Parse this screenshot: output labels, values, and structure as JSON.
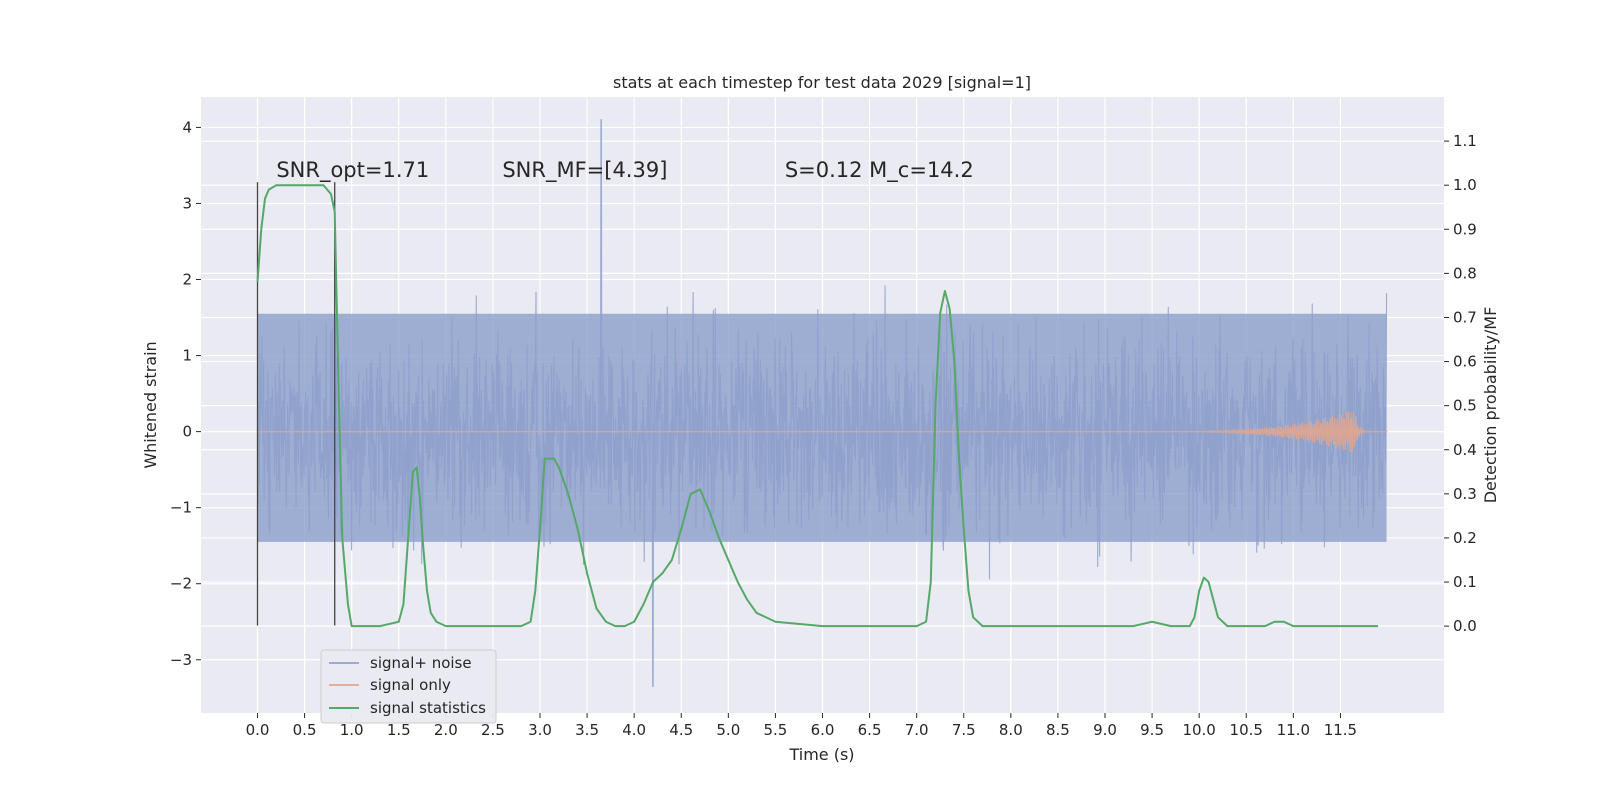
{
  "chart_data": {
    "type": "line",
    "title": "stats at each timestep for test data 2029 [signal=1]",
    "xlabel": "Time (s)",
    "ylabel": "Whitened strain",
    "ylabel_right": "Detection probability/MF",
    "xlim": [
      -0.6,
      12.6
    ],
    "ylim": [
      -3.7,
      4.4
    ],
    "ylim_right": [
      -0.197,
      1.2
    ],
    "x_ticks": [
      0.0,
      0.5,
      1.0,
      1.5,
      2.0,
      2.5,
      3.0,
      3.5,
      4.0,
      4.5,
      5.0,
      5.5,
      6.0,
      6.5,
      7.0,
      7.5,
      8.0,
      8.5,
      9.0,
      9.5,
      10.0,
      10.5,
      11.0,
      11.5
    ],
    "x_tick_labels": [
      "0.0",
      "0.5",
      "1.0",
      "1.5",
      "2.0",
      "2.5",
      "3.0",
      "3.5",
      "4.0",
      "4.5",
      "5.0",
      "5.5",
      "6.0",
      "6.5",
      "7.0",
      "7.5",
      "8.0",
      "8.5",
      "9.0",
      "9.5",
      "10.0",
      "10.5",
      "11.0",
      "11.5"
    ],
    "y_ticks": [
      -3,
      -2,
      -1,
      0,
      1,
      2,
      3,
      4
    ],
    "y_tick_labels": [
      "−3",
      "−2",
      "−1",
      "0",
      "1",
      "2",
      "3",
      "4"
    ],
    "y_ticks_right": [
      0.0,
      0.1,
      0.2,
      0.3,
      0.4,
      0.5,
      0.6,
      0.7,
      0.8,
      0.9,
      1.0,
      1.1
    ],
    "y_tick_labels_right": [
      "0.0",
      "0.1",
      "0.2",
      "0.3",
      "0.4",
      "0.5",
      "0.6",
      "0.7",
      "0.8",
      "0.9",
      "1.0",
      "1.1"
    ],
    "grid": true,
    "legend_position": "lower-left",
    "annotations": [
      {
        "text": "SNR_opt=1.71",
        "x": 0.2,
        "y": 3.35
      },
      {
        "text": "SNR_MF=[4.39]",
        "x": 2.6,
        "y": 3.35
      },
      {
        "text": "S=0.12   M_c=14.2",
        "x": 5.6,
        "y": 3.35
      }
    ],
    "window_markers": [
      0.0,
      0.82
    ],
    "series": [
      {
        "name": "signal+ noise",
        "axis": "left",
        "color": "#8da0cb",
        "t_start": 0.0,
        "t_end": 11.99,
        "band_lower": -1.45,
        "band_upper": 1.55,
        "typical_range": [
          -2.3,
          2.3
        ],
        "peak_max": 4.1,
        "peak_max_at": 3.65,
        "peak_min": -3.35,
        "peak_min_at": 4.2
      },
      {
        "name": "signal only",
        "axis": "left",
        "color": "#e1a58f",
        "t_start": 0.0,
        "t_end": 12.0,
        "peak_amplitude": 0.3,
        "peak_at": 11.65
      },
      {
        "name": "signal statistics",
        "axis": "right",
        "color": "#55a868",
        "x": [
          0.0,
          0.04,
          0.08,
          0.12,
          0.2,
          0.3,
          0.5,
          0.7,
          0.78,
          0.82,
          0.86,
          0.9,
          0.96,
          1.0,
          1.1,
          1.3,
          1.5,
          1.55,
          1.6,
          1.65,
          1.69,
          1.72,
          1.76,
          1.8,
          1.84,
          1.9,
          2.0,
          2.2,
          2.5,
          2.8,
          2.9,
          2.95,
          3.0,
          3.05,
          3.1,
          3.15,
          3.2,
          3.3,
          3.4,
          3.5,
          3.6,
          3.7,
          3.8,
          3.9,
          4.0,
          4.1,
          4.2,
          4.3,
          4.4,
          4.5,
          4.6,
          4.7,
          4.8,
          4.9,
          5.0,
          5.1,
          5.2,
          5.3,
          5.5,
          6.0,
          6.5,
          7.0,
          7.1,
          7.15,
          7.2,
          7.25,
          7.3,
          7.35,
          7.4,
          7.45,
          7.5,
          7.55,
          7.6,
          7.7,
          8.0,
          8.5,
          9.0,
          9.3,
          9.5,
          9.7,
          9.9,
          9.95,
          10.0,
          10.05,
          10.1,
          10.15,
          10.2,
          10.3,
          10.5,
          10.7,
          10.8,
          10.9,
          11.0,
          11.2,
          11.5,
          11.9
        ],
        "values": [
          0.78,
          0.9,
          0.97,
          0.99,
          1.0,
          1.0,
          1.0,
          1.0,
          0.98,
          0.94,
          0.55,
          0.2,
          0.05,
          0.0,
          0.0,
          0.0,
          0.01,
          0.05,
          0.2,
          0.35,
          0.36,
          0.3,
          0.18,
          0.08,
          0.03,
          0.01,
          0.0,
          0.0,
          0.0,
          0.0,
          0.01,
          0.08,
          0.22,
          0.38,
          0.38,
          0.38,
          0.36,
          0.3,
          0.22,
          0.12,
          0.04,
          0.01,
          0.0,
          0.0,
          0.01,
          0.05,
          0.1,
          0.12,
          0.15,
          0.22,
          0.3,
          0.31,
          0.26,
          0.2,
          0.15,
          0.1,
          0.06,
          0.03,
          0.01,
          0.0,
          0.0,
          0.0,
          0.01,
          0.1,
          0.5,
          0.71,
          0.76,
          0.72,
          0.6,
          0.38,
          0.22,
          0.08,
          0.02,
          0.0,
          0.0,
          0.0,
          0.0,
          0.0,
          0.01,
          0.0,
          0.0,
          0.02,
          0.08,
          0.11,
          0.1,
          0.06,
          0.02,
          0.0,
          0.0,
          0.0,
          0.01,
          0.01,
          0.0,
          0.0,
          0.0,
          0.0
        ]
      }
    ]
  }
}
